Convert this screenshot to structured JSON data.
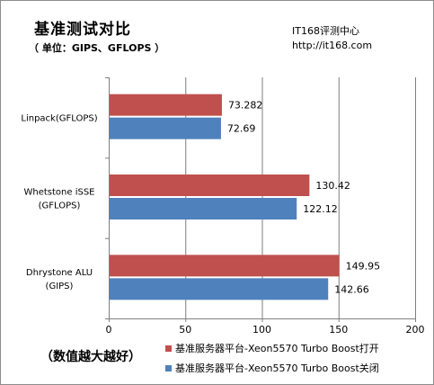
{
  "header": {
    "title": "基准测试对比",
    "subtitle": "（ 单位：GIPS、GFLOPS ）",
    "source_name": "IT168评测中心",
    "source_url": "http://it168.com"
  },
  "footnote": "（数值越大越好）",
  "colors": {
    "series_on": "#c0504d",
    "series_off": "#4f81bd",
    "grid": "#7f7f7f"
  },
  "chart_data": {
    "type": "bar",
    "orientation": "horizontal",
    "categories": [
      [
        "Linpack(GFLOPS)"
      ],
      [
        "Whetstone iSSE",
        "(GFLOPS)"
      ],
      [
        "Dhrystone ALU",
        "(GIPS)"
      ]
    ],
    "series": [
      {
        "name": "基准服务器平台-Xeon5570 Turbo Boost打开",
        "values": [
          73.282,
          130.42,
          149.95
        ]
      },
      {
        "name": "基准服务器平台-Xeon5570 Turbo Boost关闭",
        "values": [
          72.69,
          122.12,
          142.66
        ]
      }
    ],
    "xlim": [
      0,
      200
    ],
    "xticks": [
      0,
      50,
      100,
      150,
      200
    ],
    "grid": true,
    "legend_position": "bottom-right"
  }
}
